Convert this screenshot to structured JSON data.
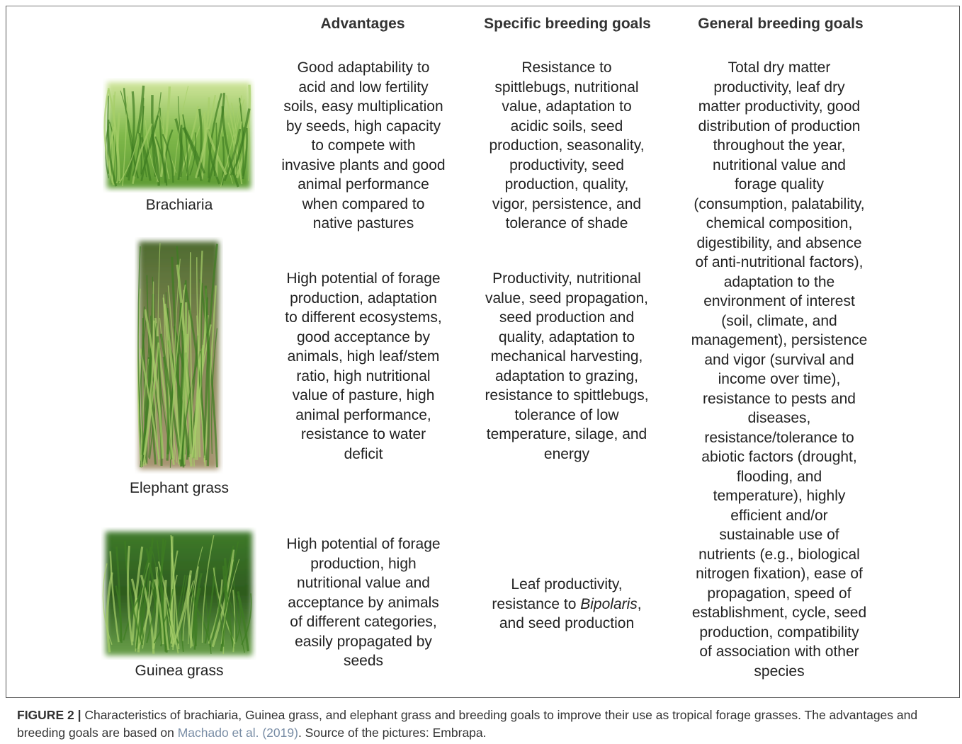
{
  "headers": [
    "Advantages",
    "Specific breeding goals",
    "General breeding goals"
  ],
  "rows": [
    {
      "name": "Brachiaria",
      "advantages": [
        "Good adaptability to",
        "acid and low fertility",
        "soils, easy multiplication",
        "by seeds, high capacity",
        "to compete with",
        "invasive plants and good",
        "animal performance",
        "when compared to",
        "native pastures"
      ],
      "specific_goals": [
        "Resistance to",
        "spittlebugs, nutritional",
        "value, adaptation to",
        "acidic soils, seed",
        "production, seasonality,",
        "productivity, seed",
        "production, quality,",
        "vigor, persistence, and",
        "tolerance of shade"
      ]
    },
    {
      "name": "Elephant grass",
      "advantages": [
        "High potential of forage",
        "production, adaptation",
        "to different ecosystems,",
        "good acceptance by",
        "animals, high leaf/stem",
        "ratio, high nutritional",
        "value of pasture, high",
        "animal performance,",
        "resistance to water",
        "deficit"
      ],
      "specific_goals": [
        "Productivity, nutritional",
        "value, seed propagation,",
        "seed production and",
        "quality, adaptation to",
        "mechanical harvesting,",
        "adaptation to grazing,",
        "resistance to spittlebugs,",
        "tolerance of low",
        "temperature, silage, and",
        "energy"
      ]
    },
    {
      "name": "Guinea grass",
      "advantages": [
        "High potential of forage",
        "production, high",
        "nutritional value and",
        "acceptance by animals",
        "of different categories,",
        "easily propagated by",
        "seeds"
      ],
      "specific_goals": [
        "Leaf productivity,",
        [
          {
            "text": "resistance to "
          },
          {
            "text": "Bipolaris",
            "italic": true
          },
          {
            "text": ","
          }
        ],
        "and seed production"
      ]
    }
  ],
  "general_goals": [
    "Total dry matter",
    "productivity, leaf dry",
    "matter productivity, good",
    "distribution of production",
    "throughout the year,",
    "nutritional value and",
    "forage quality",
    "(consumption, palatability,",
    "chemical composition,",
    "digestibility, and absence",
    "of anti-nutritional factors),",
    "adaptation to the",
    "environment of interest",
    "(soil, climate, and",
    "management), persistence",
    "and vigor (survival and",
    "income over time),",
    "resistance to pests and",
    "diseases,",
    "resistance/tolerance to",
    "abiotic factors (drought,",
    "flooding, and",
    "temperature), highly",
    "efficient and/or",
    "sustainable use of",
    "nutrients (e.g., biological",
    "nitrogen fixation), ease of",
    "propagation, speed of",
    "establishment, cycle, seed",
    "production, compatibility",
    "of association with other",
    "species"
  ],
  "caption": {
    "label": "FIGURE 2 |",
    "text_before": " Characteristics of brachiaria, Guinea grass, and elephant grass and breeding goals to improve their use as tropical forage grasses. The advantages and breeding goals are based on ",
    "citation": "Machado et al. (2019)",
    "text_after": ". Source of the pictures: Embrapa."
  }
}
